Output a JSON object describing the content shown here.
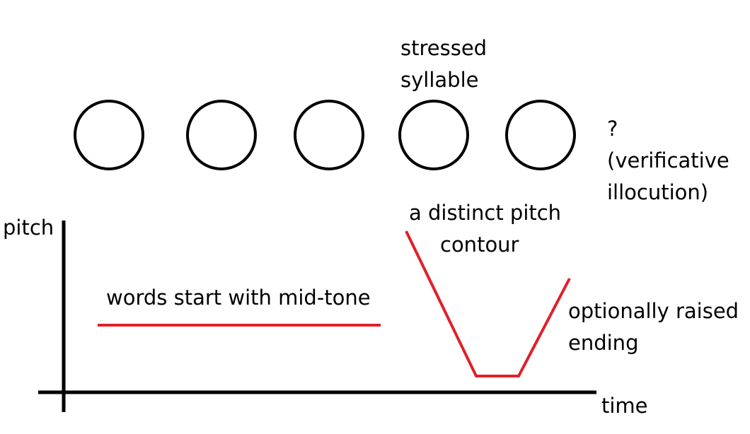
{
  "colors": {
    "ink": "#000000",
    "contour": "#e0202a",
    "background": "#ffffff"
  },
  "syllables": {
    "count": 5,
    "shape": "circle"
  },
  "labels": {
    "stressed_line1": "stressed",
    "stressed_line2": "syllable",
    "question_mark": "?",
    "illocution_line1": "(verificative",
    "illocution_line2": "illocution)",
    "axis_y": "pitch",
    "axis_x": "time",
    "mid_tone": "words start with mid-tone",
    "contour_line1": "a distinct pitch",
    "contour_line2": "contour",
    "ending_line1": "optionally raised",
    "ending_line2": "ending"
  }
}
